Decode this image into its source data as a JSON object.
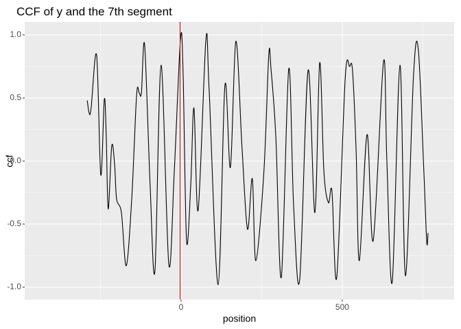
{
  "chart_data": {
    "type": "line",
    "title": "CCF of y and the 7th segment",
    "x_label": "position",
    "y_label": "ccf",
    "x": [
      -291,
      -285,
      -279,
      -262,
      -249,
      -238,
      -232,
      -226,
      -215,
      -206,
      -200,
      -185,
      -170,
      -153,
      -138,
      -130,
      -123,
      -113,
      -96,
      -81,
      -62,
      -38,
      -21,
      -2,
      6,
      17,
      30,
      40,
      53,
      77,
      87,
      115,
      136,
      153,
      170,
      189,
      206,
      221,
      232,
      257,
      272,
      279,
      294,
      311,
      334,
      349,
      368,
      394,
      415,
      430,
      443,
      457,
      468,
      483,
      509,
      523,
      532,
      543,
      553,
      577,
      596,
      628,
      638,
      655,
      679,
      696,
      721,
      736,
      753,
      762,
      766
    ],
    "values": [
      0.48,
      0.38,
      0.42,
      0.84,
      -0.11,
      0.49,
      0.19,
      -0.38,
      0.12,
      -0.03,
      -0.3,
      -0.41,
      -0.83,
      -0.3,
      0.52,
      0.54,
      0.54,
      0.92,
      -0.19,
      -0.87,
      0.76,
      -0.82,
      -0.08,
      0.96,
      0.73,
      -0.63,
      -0.19,
      0.42,
      -0.39,
      0.96,
      0.57,
      -0.98,
      0.6,
      -0.05,
      0.95,
      0.11,
      -0.54,
      -0.14,
      -0.79,
      -0.08,
      0.84,
      0.73,
      0.19,
      -0.92,
      0.73,
      -0.35,
      -0.94,
      0.72,
      -0.41,
      0.78,
      -0.08,
      -0.33,
      -0.24,
      -0.92,
      0.65,
      0.75,
      0.71,
      0.08,
      -0.79,
      0.21,
      -0.63,
      0.79,
      0.03,
      -0.96,
      0.76,
      -0.91,
      0.68,
      0.88,
      -0.08,
      -0.64,
      -0.57
    ],
    "color": "#000000",
    "vline": -3,
    "vline_color": "#cc0000",
    "xlim": [
      -485,
      847
    ],
    "xticks": [
      0,
      500
    ],
    "ylim": [
      -1.098,
      1.103
    ],
    "yticks": [
      {
        "value": -1,
        "label": "-1.0"
      },
      {
        "value": -0.5,
        "label": "-0.5"
      },
      {
        "value": 0,
        "label": "0.0"
      },
      {
        "value": 0.5,
        "label": "0.5"
      },
      {
        "value": 1,
        "label": "1.0"
      }
    ],
    "grid": true
  }
}
